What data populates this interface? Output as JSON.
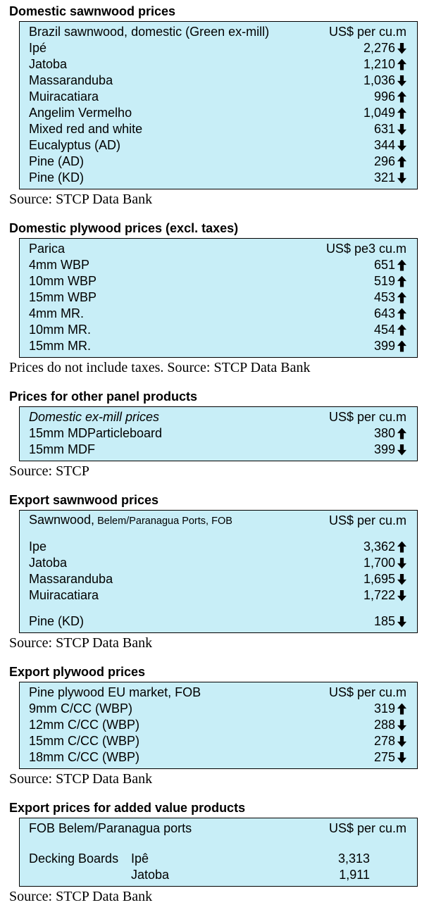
{
  "colors": {
    "table_background": "#c8eef7",
    "border": "#000000",
    "text": "#000000",
    "arrow": "#000000"
  },
  "sections": [
    {
      "id": "domestic-sawnwood",
      "title": "Domestic sawnwood prices",
      "header": {
        "label": "Brazil sawnwood, domestic (Green ex-mill)",
        "unit": "US$ per cu.m",
        "italic": false
      },
      "rows": [
        {
          "name": "Ipé",
          "value": "2,276",
          "dir": "down"
        },
        {
          "name": "Jatoba",
          "value": "1,210",
          "dir": "up"
        },
        {
          "name": "Massaranduba",
          "value": "1,036",
          "dir": "down"
        },
        {
          "name": "Muiracatiara",
          "value": "996",
          "dir": "up"
        },
        {
          "name": "Angelim Vermelho",
          "value": "1,049",
          "dir": "up"
        },
        {
          "name": "Mixed red and white",
          "value": "631",
          "dir": "down"
        },
        {
          "name": "Eucalyptus (AD)",
          "value": "344",
          "dir": "down"
        },
        {
          "name": "Pine (AD)",
          "value": "296",
          "dir": "up"
        },
        {
          "name": "Pine (KD)",
          "value": "321",
          "dir": "down"
        }
      ],
      "source": "Source: STCP Data Bank"
    },
    {
      "id": "domestic-plywood",
      "title": "Domestic plywood prices (excl. taxes)",
      "header": {
        "label": "Parica",
        "unit": "US$ pe3 cu.m",
        "italic": false
      },
      "rows": [
        {
          "name": "4mm WBP",
          "value": "651",
          "dir": "up"
        },
        {
          "name": "10mm WBP",
          "value": "519",
          "dir": "up"
        },
        {
          "name": "15mm WBP",
          "value": "453",
          "dir": "up"
        },
        {
          "name": "4mm MR.",
          "value": "643",
          "dir": "up"
        },
        {
          "name": "10mm MR.",
          "value": "454",
          "dir": "up"
        },
        {
          "name": "15mm MR.",
          "value": "399",
          "dir": "up"
        }
      ],
      "source": "Prices do not include taxes. Source: STCP Data Bank"
    },
    {
      "id": "other-panel-products",
      "title": "Prices for other panel products",
      "header": {
        "label": "Domestic ex-mill prices",
        "unit": "US$ per cu.m",
        "italic": true
      },
      "rows": [
        {
          "name": "15mm MDParticleboard",
          "value": "380",
          "dir": "up"
        },
        {
          "name": "15mm MDF",
          "value": "399",
          "dir": "down"
        }
      ],
      "source": "Source: STCP"
    },
    {
      "id": "export-sawnwood",
      "title": "Export sawnwood prices",
      "header": {
        "label": "Sawnwood,",
        "label_small": " Belem/Paranagua Ports, FOB",
        "unit": "US$ per cu.m",
        "italic": false
      },
      "rows": [
        {
          "spacer": true
        },
        {
          "name": "Ipe",
          "value": "3,362",
          "dir": "up"
        },
        {
          "name": "Jatoba",
          "value": "1,700",
          "dir": "down"
        },
        {
          "name": "Massaranduba",
          "value": "1,695",
          "dir": "down"
        },
        {
          "name": "Muiracatiara",
          "value": "1,722",
          "dir": "down"
        },
        {
          "spacer": true
        },
        {
          "name": "Pine (KD)",
          "value": "185",
          "dir": "down"
        }
      ],
      "source": "Source: STCP Data Bank"
    },
    {
      "id": "export-plywood",
      "title": "Export plywood prices",
      "header": {
        "label": "Pine plywood EU market, FOB",
        "unit": "US$ per cu.m",
        "italic": false
      },
      "rows": [
        {
          "name": "9mm C/CC (WBP)",
          "value": "319",
          "dir": "up"
        },
        {
          "name": "12mm C/CC (WBP)",
          "value": "288",
          "dir": "down"
        },
        {
          "name": "15mm C/CC (WBP)",
          "value": "278",
          "dir": "down"
        },
        {
          "name": "18mm C/CC (WBP)",
          "value": "275",
          "dir": "down"
        }
      ],
      "source": "Source: STCP Data Bank"
    },
    {
      "id": "added-value-products",
      "title": "Export prices for added value products",
      "header": {
        "label": "FOB Belem/Paranagua ports",
        "unit": "US$ per cu.m",
        "italic": false
      },
      "rows": [
        {
          "spacer": true
        },
        {
          "name": "Decking Boards",
          "name2": "Ipê",
          "value": "3,313"
        },
        {
          "name": "",
          "name2": "Jatoba",
          "value": "1,911"
        }
      ],
      "source": "Source: STCP Data Bank"
    }
  ]
}
